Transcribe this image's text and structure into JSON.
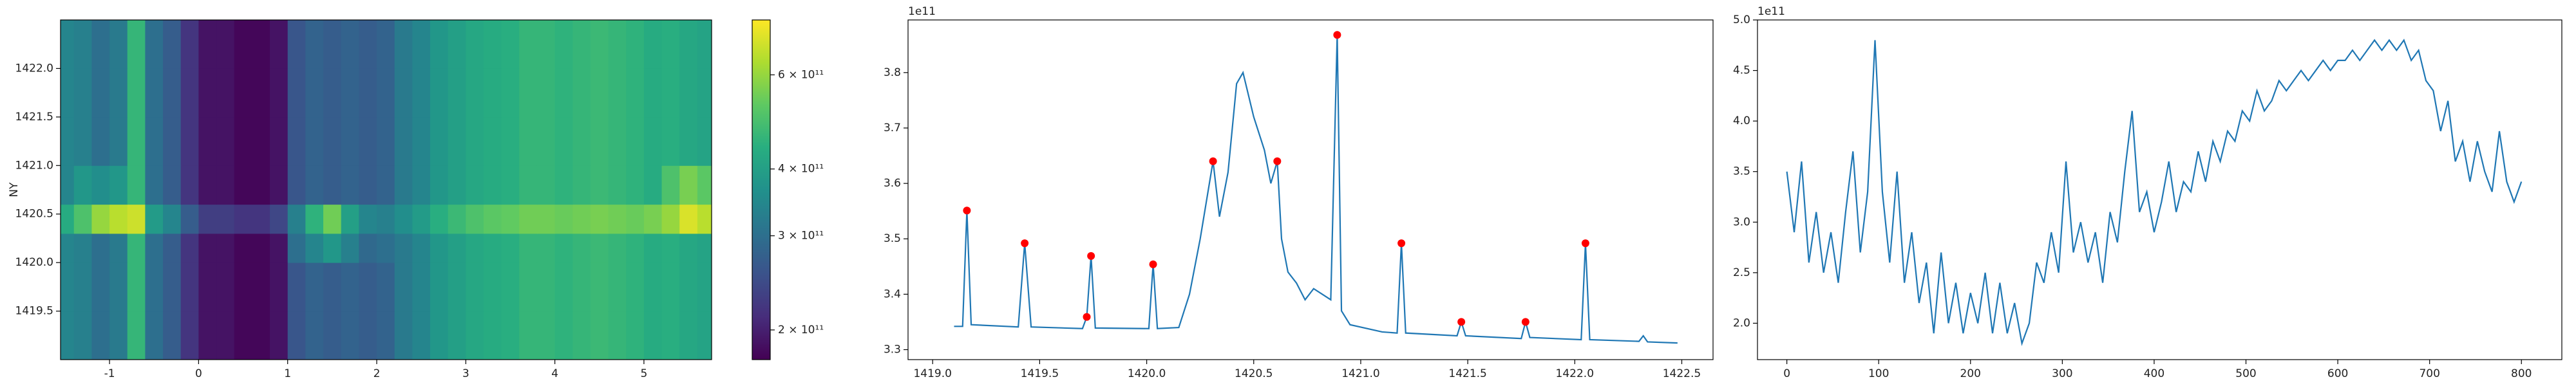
{
  "chart_data": [
    {
      "type": "heatmap",
      "colormap": "viridis",
      "ylabel": "NY",
      "x_edges": [
        -1.6,
        -1.4,
        -1.2,
        -1.0,
        -0.8,
        -0.6,
        -0.4,
        -0.2,
        0.0,
        0.2,
        0.4,
        0.6,
        0.8,
        1.0,
        1.2,
        1.4,
        1.6,
        1.8,
        2.0,
        2.2,
        2.4,
        2.6,
        2.8,
        3.0,
        3.2,
        3.4,
        3.6,
        3.8,
        4.0,
        4.2,
        4.4,
        4.6,
        4.8,
        5.0,
        5.2,
        5.4,
        5.6,
        5.8
      ],
      "y_edges": [
        1419.0,
        1419.5,
        1420.0,
        1420.3,
        1420.6,
        1421.0,
        1421.5,
        1422.0,
        1422.5
      ],
      "values": [
        [
          340000000000.0,
          330000000000.0,
          300000000000.0,
          320000000000.0,
          460000000000.0,
          300000000000.0,
          270000000000.0,
          220000000000.0,
          190000000000.0,
          190000000000.0,
          180000000000.0,
          180000000000.0,
          190000000000.0,
          260000000000.0,
          280000000000.0,
          270000000000.0,
          280000000000.0,
          270000000000.0,
          280000000000.0,
          320000000000.0,
          340000000000.0,
          380000000000.0,
          400000000000.0,
          420000000000.0,
          430000000000.0,
          440000000000.0,
          460000000000.0,
          460000000000.0,
          450000000000.0,
          460000000000.0,
          470000000000.0,
          460000000000.0,
          450000000000.0,
          430000000000.0,
          440000000000.0,
          420000000000.0,
          410000000000.0
        ],
        [
          340000000000.0,
          330000000000.0,
          300000000000.0,
          320000000000.0,
          460000000000.0,
          300000000000.0,
          270000000000.0,
          220000000000.0,
          190000000000.0,
          190000000000.0,
          180000000000.0,
          180000000000.0,
          190000000000.0,
          260000000000.0,
          280000000000.0,
          270000000000.0,
          280000000000.0,
          270000000000.0,
          280000000000.0,
          320000000000.0,
          340000000000.0,
          380000000000.0,
          400000000000.0,
          420000000000.0,
          430000000000.0,
          440000000000.0,
          460000000000.0,
          460000000000.0,
          450000000000.0,
          460000000000.0,
          470000000000.0,
          460000000000.0,
          450000000000.0,
          430000000000.0,
          440000000000.0,
          420000000000.0,
          410000000000.0
        ],
        [
          340000000000.0,
          330000000000.0,
          300000000000.0,
          320000000000.0,
          460000000000.0,
          300000000000.0,
          270000000000.0,
          220000000000.0,
          190000000000.0,
          190000000000.0,
          180000000000.0,
          180000000000.0,
          190000000000.0,
          300000000000.0,
          340000000000.0,
          380000000000.0,
          330000000000.0,
          290000000000.0,
          300000000000.0,
          320000000000.0,
          340000000000.0,
          380000000000.0,
          400000000000.0,
          420000000000.0,
          430000000000.0,
          440000000000.0,
          460000000000.0,
          460000000000.0,
          450000000000.0,
          460000000000.0,
          470000000000.0,
          460000000000.0,
          450000000000.0,
          430000000000.0,
          440000000000.0,
          420000000000.0,
          410000000000.0
        ],
        [
          430000000000.0,
          500000000000.0,
          600000000000.0,
          650000000000.0,
          680000000000.0,
          390000000000.0,
          340000000000.0,
          270000000000.0,
          230000000000.0,
          230000000000.0,
          220000000000.0,
          220000000000.0,
          240000000000.0,
          330000000000.0,
          450000000000.0,
          550000000000.0,
          400000000000.0,
          340000000000.0,
          330000000000.0,
          360000000000.0,
          390000000000.0,
          440000000000.0,
          470000000000.0,
          500000000000.0,
          520000000000.0,
          530000000000.0,
          550000000000.0,
          550000000000.0,
          540000000000.0,
          550000000000.0,
          560000000000.0,
          550000000000.0,
          540000000000.0,
          560000000000.0,
          600000000000.0,
          700000000000.0,
          650000000000.0
        ],
        [
          340000000000.0,
          380000000000.0,
          360000000000.0,
          380000000000.0,
          460000000000.0,
          300000000000.0,
          270000000000.0,
          220000000000.0,
          190000000000.0,
          190000000000.0,
          180000000000.0,
          180000000000.0,
          190000000000.0,
          260000000000.0,
          280000000000.0,
          270000000000.0,
          280000000000.0,
          270000000000.0,
          280000000000.0,
          320000000000.0,
          340000000000.0,
          380000000000.0,
          400000000000.0,
          420000000000.0,
          430000000000.0,
          440000000000.0,
          460000000000.0,
          460000000000.0,
          450000000000.0,
          460000000000.0,
          470000000000.0,
          460000000000.0,
          450000000000.0,
          430000000000.0,
          500000000000.0,
          560000000000.0,
          520000000000.0
        ],
        [
          340000000000.0,
          330000000000.0,
          300000000000.0,
          320000000000.0,
          460000000000.0,
          300000000000.0,
          270000000000.0,
          220000000000.0,
          190000000000.0,
          190000000000.0,
          180000000000.0,
          180000000000.0,
          190000000000.0,
          260000000000.0,
          280000000000.0,
          270000000000.0,
          280000000000.0,
          270000000000.0,
          280000000000.0,
          320000000000.0,
          340000000000.0,
          380000000000.0,
          400000000000.0,
          420000000000.0,
          430000000000.0,
          440000000000.0,
          460000000000.0,
          460000000000.0,
          450000000000.0,
          460000000000.0,
          470000000000.0,
          460000000000.0,
          450000000000.0,
          430000000000.0,
          440000000000.0,
          420000000000.0,
          410000000000.0
        ],
        [
          340000000000.0,
          330000000000.0,
          300000000000.0,
          320000000000.0,
          460000000000.0,
          300000000000.0,
          270000000000.0,
          220000000000.0,
          190000000000.0,
          190000000000.0,
          180000000000.0,
          180000000000.0,
          190000000000.0,
          260000000000.0,
          280000000000.0,
          270000000000.0,
          280000000000.0,
          270000000000.0,
          280000000000.0,
          320000000000.0,
          340000000000.0,
          380000000000.0,
          400000000000.0,
          420000000000.0,
          430000000000.0,
          440000000000.0,
          460000000000.0,
          460000000000.0,
          450000000000.0,
          460000000000.0,
          470000000000.0,
          460000000000.0,
          450000000000.0,
          430000000000.0,
          440000000000.0,
          420000000000.0,
          410000000000.0
        ],
        [
          340000000000.0,
          330000000000.0,
          300000000000.0,
          320000000000.0,
          460000000000.0,
          300000000000.0,
          270000000000.0,
          220000000000.0,
          190000000000.0,
          190000000000.0,
          180000000000.0,
          180000000000.0,
          190000000000.0,
          260000000000.0,
          280000000000.0,
          270000000000.0,
          280000000000.0,
          270000000000.0,
          280000000000.0,
          320000000000.0,
          340000000000.0,
          380000000000.0,
          400000000000.0,
          420000000000.0,
          430000000000.0,
          440000000000.0,
          460000000000.0,
          460000000000.0,
          450000000000.0,
          460000000000.0,
          470000000000.0,
          460000000000.0,
          450000000000.0,
          430000000000.0,
          440000000000.0,
          420000000000.0,
          410000000000.0
        ]
      ],
      "xlim": [
        -1.55,
        5.76
      ],
      "ylim": [
        1419.0,
        1422.5
      ],
      "xticks": [
        -1,
        0,
        1,
        2,
        3,
        4,
        5
      ],
      "yticks": [
        1419.5,
        {
          "value": 1420,
          "label": "1420.0"
        },
        1420.5,
        {
          "value": 1421,
          "label": "1421.0"
        },
        1421.5,
        {
          "value": 1422,
          "label": "1422.0"
        }
      ],
      "colorbar": {
        "scale": "log",
        "lim": [
          176000000000.0,
          760000000000.0
        ],
        "ticks": [
          {
            "value": 200000000000.0,
            "label": "2 × 10¹¹"
          },
          {
            "value": 300000000000.0,
            "label": "3 × 10¹¹"
          },
          {
            "value": 400000000000.0,
            "label": "4 × 10¹¹"
          },
          {
            "value": 600000000000.0,
            "label": "6 × 10¹¹"
          }
        ]
      }
    },
    {
      "type": "line",
      "color": "#1f77b4",
      "offset_label": "1e11",
      "x": [
        1419.1,
        1419.14,
        1419.16,
        1419.18,
        1419.4,
        1419.43,
        1419.46,
        1419.7,
        1419.72,
        1419.74,
        1419.76,
        1420.01,
        1420.03,
        1420.05,
        1420.15,
        1420.2,
        1420.25,
        1420.31,
        1420.34,
        1420.38,
        1420.42,
        1420.45,
        1420.5,
        1420.55,
        1420.58,
        1420.61,
        1420.63,
        1420.66,
        1420.7,
        1420.74,
        1420.78,
        1420.82,
        1420.86,
        1420.89,
        1420.91,
        1420.95,
        1421.1,
        1421.17,
        1421.19,
        1421.21,
        1421.45,
        1421.47,
        1421.49,
        1421.75,
        1421.77,
        1421.79,
        1422.03,
        1422.05,
        1422.07,
        1422.3,
        1422.32,
        1422.34,
        1422.48
      ],
      "values": [
        3.342,
        3.342,
        3.551,
        3.345,
        3.341,
        3.492,
        3.341,
        3.338,
        3.359,
        3.469,
        3.339,
        3.338,
        3.454,
        3.338,
        3.34,
        3.4,
        3.5,
        3.64,
        3.54,
        3.62,
        3.78,
        3.8,
        3.72,
        3.66,
        3.6,
        3.64,
        3.5,
        3.44,
        3.42,
        3.39,
        3.41,
        3.4,
        3.39,
        3.868,
        3.37,
        3.345,
        3.332,
        3.33,
        3.492,
        3.33,
        3.325,
        3.35,
        3.325,
        3.32,
        3.35,
        3.322,
        3.318,
        3.492,
        3.318,
        3.315,
        3.325,
        3.314,
        3.312
      ],
      "peaks": {
        "color": "#ff0000",
        "x": [
          1419.16,
          1419.43,
          1419.72,
          1419.74,
          1420.03,
          1420.31,
          1420.61,
          1420.89,
          1421.19,
          1421.47,
          1421.77,
          1422.05
        ],
        "values": [
          3.551,
          3.492,
          3.359,
          3.469,
          3.454,
          3.64,
          3.64,
          3.868,
          3.492,
          3.35,
          3.35,
          3.492
        ]
      },
      "xlim": [
        1418.885,
        1422.646
      ],
      "ylim": [
        3.282,
        3.895
      ],
      "xticks": [
        {
          "value": 1419,
          "label": "1419.0"
        },
        1419.5,
        {
          "value": 1420,
          "label": "1420.0"
        },
        1420.5,
        {
          "value": 1421,
          "label": "1421.0"
        },
        1421.5,
        {
          "value": 1422,
          "label": "1422.0"
        },
        1422.5
      ],
      "yticks": [
        3.3,
        3.4,
        3.5,
        3.6,
        3.7,
        3.8
      ]
    },
    {
      "type": "line",
      "color": "#1f77b4",
      "offset_label": "1e11",
      "x": [
        0,
        8,
        16,
        24,
        32,
        40,
        48,
        56,
        64,
        72,
        80,
        88,
        96,
        104,
        112,
        120,
        128,
        136,
        144,
        152,
        160,
        168,
        176,
        184,
        192,
        200,
        208,
        216,
        224,
        232,
        240,
        248,
        256,
        264,
        272,
        280,
        288,
        296,
        304,
        312,
        320,
        328,
        336,
        344,
        352,
        360,
        368,
        376,
        384,
        392,
        400,
        408,
        416,
        424,
        432,
        440,
        448,
        456,
        464,
        472,
        480,
        488,
        496,
        504,
        512,
        520,
        528,
        536,
        544,
        552,
        560,
        568,
        576,
        584,
        592,
        600,
        608,
        616,
        624,
        632,
        640,
        648,
        656,
        664,
        672,
        680,
        688,
        696,
        704,
        712,
        720,
        728,
        736,
        744,
        752,
        760,
        768,
        776,
        784,
        792,
        800
      ],
      "values": [
        3.5,
        2.9,
        3.6,
        2.6,
        3.1,
        2.5,
        2.9,
        2.4,
        3.1,
        3.7,
        2.7,
        3.3,
        4.8,
        3.3,
        2.6,
        3.5,
        2.4,
        2.9,
        2.2,
        2.6,
        1.9,
        2.7,
        2.0,
        2.4,
        1.9,
        2.3,
        2.0,
        2.5,
        1.9,
        2.4,
        1.9,
        2.2,
        1.8,
        2.0,
        2.6,
        2.4,
        2.9,
        2.5,
        3.6,
        2.7,
        3.0,
        2.6,
        2.9,
        2.4,
        3.1,
        2.8,
        3.5,
        4.1,
        3.1,
        3.3,
        2.9,
        3.2,
        3.6,
        3.1,
        3.4,
        3.3,
        3.7,
        3.4,
        3.8,
        3.6,
        3.9,
        3.8,
        4.1,
        4.0,
        4.3,
        4.1,
        4.2,
        4.4,
        4.3,
        4.4,
        4.5,
        4.4,
        4.5,
        4.6,
        4.5,
        4.6,
        4.6,
        4.7,
        4.6,
        4.7,
        4.8,
        4.7,
        4.8,
        4.7,
        4.8,
        4.6,
        4.7,
        4.4,
        4.3,
        3.9,
        4.2,
        3.6,
        3.8,
        3.4,
        3.8,
        3.5,
        3.3,
        3.9,
        3.4,
        3.2,
        3.4
      ],
      "xlim": [
        -32,
        844
      ],
      "ylim": [
        1.64,
        5.0
      ],
      "xticks": [
        0,
        100,
        200,
        300,
        400,
        500,
        600,
        700,
        800
      ],
      "yticks": [
        {
          "value": 2,
          "label": "2.0"
        },
        2.5,
        {
          "value": 3,
          "label": "3.0"
        },
        3.5,
        {
          "value": 4,
          "label": "4.0"
        },
        4.5,
        {
          "value": 5,
          "label": "5.0"
        }
      ]
    }
  ]
}
